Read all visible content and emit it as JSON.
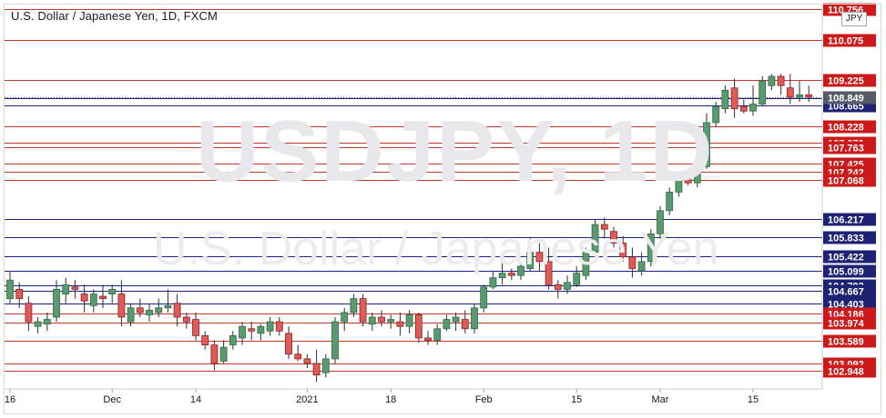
{
  "title": "U.S. Dollar / Japanese Yen, 1D, FXCM",
  "watermark": {
    "main": "USDJPY, 1D",
    "sub": "U.S. Dollar / Japanese Yen"
  },
  "currency": "JPY",
  "colors": {
    "up_body": "#5b9a6f",
    "up_border": "#2e6b45",
    "down_body": "#e05a5a",
    "down_border": "#8c1f1f",
    "red_line": "#c0392b",
    "blue_line": "#1a237e",
    "red_label": "#cc1a1a",
    "blue_label": "#1e2272",
    "current_label": "#555a64"
  },
  "chart_data": {
    "type": "candlestick",
    "ylim": [
      102.55,
      110.85
    ],
    "x_ticks": [
      "16",
      "Dec",
      "14",
      "2021",
      "18",
      "Feb",
      "15",
      "Mar",
      "15"
    ],
    "x_tick_index": [
      0,
      11,
      20,
      32,
      41,
      51,
      61,
      70,
      80
    ],
    "price_lines": [
      {
        "value": "110.756",
        "color": "red"
      },
      {
        "value": "110.075",
        "color": "red"
      },
      {
        "value": "109.225",
        "color": "red"
      },
      {
        "value": "108.828",
        "color": "blue"
      },
      {
        "value": "108.665",
        "color": "blue"
      },
      {
        "value": "108.228",
        "color": "red"
      },
      {
        "value": "107.870",
        "color": "red"
      },
      {
        "value": "107.763",
        "color": "red"
      },
      {
        "value": "107.425",
        "color": "red"
      },
      {
        "value": "107.242",
        "color": "red"
      },
      {
        "value": "107.068",
        "color": "red"
      },
      {
        "value": "106.217",
        "color": "blue"
      },
      {
        "value": "105.833",
        "color": "blue"
      },
      {
        "value": "105.422",
        "color": "blue"
      },
      {
        "value": "105.099",
        "color": "blue"
      },
      {
        "value": "104.793",
        "color": "blue"
      },
      {
        "value": "104.667",
        "color": "blue"
      },
      {
        "value": "104.403",
        "color": "blue"
      },
      {
        "value": "104.186",
        "color": "red"
      },
      {
        "value": "103.974",
        "color": "red"
      },
      {
        "value": "103.589",
        "color": "red"
      },
      {
        "value": "103.092",
        "color": "red"
      },
      {
        "value": "102.948",
        "color": "red"
      }
    ],
    "current_price": "108.849",
    "candles": [
      [
        104.5,
        105.1,
        104.4,
        104.9
      ],
      [
        104.7,
        104.85,
        104.3,
        104.5
      ],
      [
        104.4,
        104.55,
        103.8,
        104.0
      ],
      [
        103.9,
        104.1,
        103.75,
        104.0
      ],
      [
        103.95,
        104.2,
        103.8,
        104.05
      ],
      [
        104.1,
        104.9,
        104.0,
        104.7
      ],
      [
        104.6,
        104.95,
        104.4,
        104.8
      ],
      [
        104.75,
        104.9,
        104.5,
        104.7
      ],
      [
        104.6,
        104.8,
        104.2,
        104.45
      ],
      [
        104.35,
        104.7,
        104.2,
        104.6
      ],
      [
        104.55,
        104.8,
        104.3,
        104.5
      ],
      [
        104.6,
        104.8,
        104.4,
        104.7
      ],
      [
        104.6,
        104.9,
        103.9,
        104.1
      ],
      [
        104.0,
        104.4,
        103.9,
        104.3
      ],
      [
        104.3,
        104.5,
        104.1,
        104.2
      ],
      [
        104.15,
        104.4,
        104.0,
        104.25
      ],
      [
        104.2,
        104.5,
        104.1,
        104.3
      ],
      [
        104.3,
        104.7,
        104.2,
        104.35
      ],
      [
        104.4,
        104.6,
        103.9,
        104.1
      ],
      [
        104.1,
        104.2,
        103.85,
        104.0
      ],
      [
        104.05,
        104.2,
        103.6,
        103.7
      ],
      [
        103.7,
        103.8,
        103.4,
        103.5
      ],
      [
        103.5,
        103.6,
        102.95,
        103.1
      ],
      [
        103.15,
        103.6,
        103.1,
        103.45
      ],
      [
        103.5,
        103.8,
        103.4,
        103.7
      ],
      [
        103.65,
        104.0,
        103.5,
        103.9
      ],
      [
        103.85,
        104.0,
        103.6,
        103.8
      ],
      [
        103.75,
        103.95,
        103.6,
        103.9
      ],
      [
        103.8,
        104.1,
        103.7,
        104.0
      ],
      [
        104.0,
        104.1,
        103.7,
        103.8
      ],
      [
        103.75,
        103.9,
        103.2,
        103.3
      ],
      [
        103.3,
        103.5,
        103.15,
        103.2
      ],
      [
        103.2,
        103.3,
        103.0,
        103.1
      ],
      [
        103.1,
        103.4,
        102.7,
        102.85
      ],
      [
        102.9,
        103.3,
        102.8,
        103.2
      ],
      [
        103.2,
        104.1,
        103.1,
        104.0
      ],
      [
        104.0,
        104.3,
        103.8,
        104.2
      ],
      [
        104.2,
        104.6,
        104.1,
        104.5
      ],
      [
        104.5,
        104.6,
        103.9,
        104.0
      ],
      [
        103.95,
        104.2,
        103.8,
        104.1
      ],
      [
        104.1,
        104.25,
        103.9,
        104.0
      ],
      [
        104.0,
        104.15,
        103.85,
        104.05
      ],
      [
        104.0,
        104.2,
        103.7,
        103.9
      ],
      [
        103.9,
        104.25,
        103.75,
        104.15
      ],
      [
        104.15,
        104.2,
        103.55,
        103.65
      ],
      [
        103.65,
        103.8,
        103.5,
        103.6
      ],
      [
        103.6,
        103.95,
        103.5,
        103.85
      ],
      [
        103.85,
        104.15,
        103.8,
        104.05
      ],
      [
        104.0,
        104.2,
        103.8,
        104.1
      ],
      [
        104.05,
        104.25,
        103.75,
        103.85
      ],
      [
        103.85,
        104.4,
        103.75,
        104.3
      ],
      [
        104.3,
        104.8,
        104.2,
        104.75
      ],
      [
        104.75,
        105.1,
        104.7,
        104.95
      ],
      [
        104.95,
        105.3,
        104.8,
        105.05
      ],
      [
        105.05,
        105.15,
        104.9,
        105.0
      ],
      [
        105.0,
        105.3,
        104.9,
        105.2
      ],
      [
        105.15,
        105.8,
        105.1,
        105.5
      ],
      [
        105.5,
        105.7,
        105.1,
        105.3
      ],
      [
        105.3,
        105.6,
        104.7,
        104.8
      ],
      [
        104.8,
        104.9,
        104.5,
        104.7
      ],
      [
        104.7,
        105.0,
        104.6,
        104.85
      ],
      [
        104.8,
        105.2,
        104.75,
        105.05
      ],
      [
        105.0,
        105.6,
        104.9,
        105.5
      ],
      [
        105.5,
        106.2,
        105.4,
        106.1
      ],
      [
        106.1,
        106.25,
        105.8,
        106.0
      ],
      [
        105.95,
        106.05,
        105.6,
        105.7
      ],
      [
        105.7,
        105.85,
        105.3,
        105.4
      ],
      [
        105.4,
        105.6,
        104.95,
        105.15
      ],
      [
        105.1,
        105.5,
        105.0,
        105.3
      ],
      [
        105.3,
        106.0,
        105.2,
        105.9
      ],
      [
        105.9,
        106.5,
        105.8,
        106.4
      ],
      [
        106.4,
        106.9,
        106.3,
        106.8
      ],
      [
        106.8,
        107.2,
        106.7,
        107.1
      ],
      [
        107.1,
        107.3,
        106.95,
        107.0
      ],
      [
        107.0,
        107.5,
        106.9,
        107.3
      ],
      [
        107.35,
        108.5,
        107.3,
        108.3
      ],
      [
        108.3,
        108.75,
        108.2,
        108.65
      ],
      [
        108.6,
        109.1,
        108.5,
        109.0
      ],
      [
        109.05,
        109.25,
        108.4,
        108.6
      ],
      [
        108.65,
        108.8,
        108.5,
        108.55
      ],
      [
        108.55,
        109.1,
        108.45,
        108.7
      ],
      [
        108.7,
        109.3,
        108.65,
        109.2
      ],
      [
        109.1,
        109.35,
        109.0,
        109.3
      ],
      [
        109.3,
        109.35,
        108.9,
        109.1
      ],
      [
        109.05,
        109.35,
        108.7,
        108.85
      ],
      [
        108.85,
        109.2,
        108.75,
        108.9
      ],
      [
        108.9,
        109.1,
        108.75,
        108.85
      ]
    ]
  }
}
